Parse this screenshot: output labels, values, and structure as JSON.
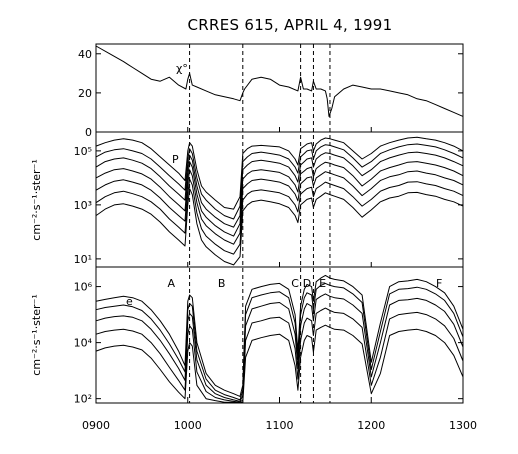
{
  "chart_data": [
    {
      "type": "line",
      "title": "CRRES 615, APRIL 4, 1991",
      "panel_label": "χ°",
      "ylabel": "",
      "ylim": [
        0,
        45
      ],
      "ytick_values": [
        0,
        20,
        40
      ],
      "ytick_labels": [
        "0",
        "20",
        "40"
      ],
      "x": [
        900,
        915,
        930,
        940,
        950,
        960,
        970,
        980,
        990,
        998,
        1000,
        1002,
        1005,
        1010,
        1020,
        1030,
        1040,
        1050,
        1057,
        1060,
        1062,
        1070,
        1080,
        1090,
        1100,
        1110,
        1120,
        1123,
        1126,
        1130,
        1135,
        1137,
        1140,
        1145,
        1150,
        1152,
        1154,
        1157,
        1160,
        1170,
        1180,
        1190,
        1200,
        1210,
        1220,
        1230,
        1240,
        1250,
        1260,
        1270,
        1280,
        1290,
        1300
      ],
      "series": [
        {
          "values": [
            44,
            40,
            36,
            33,
            30,
            27,
            26,
            28,
            24,
            22,
            27,
            30,
            24,
            23,
            21,
            19,
            18,
            17,
            16,
            20,
            22,
            27,
            28,
            27,
            24,
            23,
            21,
            28,
            22,
            22,
            21,
            26,
            22,
            22,
            21,
            17,
            8,
            12,
            18,
            22,
            24,
            23,
            22,
            22,
            21,
            20,
            19,
            17,
            16,
            14,
            12,
            10,
            8
          ]
        }
      ]
    },
    {
      "type": "line",
      "panel_label": "P",
      "ylabel": "cm⁻²·s⁻¹·ster⁻¹",
      "yscale": "log",
      "ylim": [
        5,
        500000
      ],
      "ytick_values": [
        10,
        1000,
        100000
      ],
      "ytick_labels": [
        "10¹",
        "10³",
        "10⁵"
      ],
      "x": [
        900,
        910,
        920,
        930,
        940,
        950,
        960,
        970,
        980,
        990,
        997,
        1000,
        1002,
        1005,
        1010,
        1015,
        1020,
        1030,
        1040,
        1050,
        1057,
        1060,
        1065,
        1070,
        1080,
        1090,
        1100,
        1110,
        1117,
        1120,
        1123,
        1127,
        1130,
        1135,
        1137,
        1140,
        1145,
        1150,
        1155,
        1160,
        1170,
        1180,
        1190,
        1200,
        1210,
        1220,
        1230,
        1240,
        1250,
        1260,
        1270,
        1280,
        1290,
        1300
      ],
      "series": [
        {
          "values": [
            150000,
            200000,
            250000,
            280000,
            250000,
            200000,
            120000,
            60000,
            30000,
            15000,
            8000,
            100000,
            200000,
            150000,
            20000,
            5000,
            3000,
            1500,
            800,
            700,
            2000,
            80000,
            120000,
            150000,
            160000,
            150000,
            140000,
            100000,
            50000,
            30000,
            120000,
            150000,
            180000,
            200000,
            100000,
            180000,
            250000,
            300000,
            280000,
            250000,
            200000,
            100000,
            50000,
            80000,
            150000,
            200000,
            250000,
            300000,
            320000,
            280000,
            250000,
            200000,
            150000,
            100000
          ]
        },
        {
          "values": [
            60000,
            90000,
            110000,
            120000,
            100000,
            80000,
            50000,
            25000,
            12000,
            6000,
            3500,
            50000,
            120000,
            80000,
            10000,
            2500,
            1500,
            700,
            400,
            300,
            900,
            40000,
            60000,
            80000,
            90000,
            80000,
            70000,
            50000,
            25000,
            15000,
            60000,
            80000,
            100000,
            110000,
            50000,
            100000,
            140000,
            170000,
            160000,
            140000,
            110000,
            55000,
            25000,
            40000,
            80000,
            110000,
            140000,
            170000,
            180000,
            160000,
            140000,
            110000,
            80000,
            55000
          ]
        },
        {
          "values": [
            25000,
            40000,
            50000,
            55000,
            45000,
            35000,
            22000,
            11000,
            5000,
            2500,
            1500,
            25000,
            70000,
            45000,
            5000,
            1200,
            700,
            350,
            200,
            150,
            400,
            20000,
            30000,
            40000,
            45000,
            40000,
            35000,
            25000,
            12000,
            7000,
            30000,
            40000,
            50000,
            55000,
            25000,
            50000,
            70000,
            85000,
            80000,
            70000,
            55000,
            28000,
            12000,
            20000,
            40000,
            55000,
            70000,
            85000,
            90000,
            80000,
            70000,
            55000,
            40000,
            28000
          ]
        },
        {
          "values": [
            10000,
            15000,
            20000,
            22000,
            18000,
            14000,
            9000,
            4500,
            2000,
            1000,
            600,
            12000,
            40000,
            25000,
            2500,
            600,
            350,
            170,
            100,
            70,
            200,
            9000,
            14000,
            18000,
            20000,
            18000,
            16000,
            11000,
            5500,
            3000,
            14000,
            18000,
            22000,
            25000,
            11000,
            22000,
            30000,
            38000,
            35000,
            30000,
            24000,
            12000,
            5000,
            9000,
            18000,
            24000,
            30000,
            38000,
            40000,
            35000,
            30000,
            24000,
            18000,
            12000
          ]
        },
        {
          "values": [
            3500,
            5500,
            7500,
            8500,
            7000,
            5500,
            3500,
            1800,
            800,
            400,
            250,
            6000,
            20000,
            12000,
            1200,
            300,
            170,
            85,
            50,
            35,
            90,
            4000,
            6000,
            8000,
            9000,
            8000,
            7000,
            5000,
            2500,
            1400,
            6000,
            8000,
            10000,
            11000,
            5000,
            10000,
            13000,
            17000,
            15000,
            13000,
            10000,
            5000,
            2200,
            4000,
            8000,
            11000,
            13000,
            17000,
            18000,
            15000,
            13000,
            10000,
            8000,
            5500
          ]
        },
        {
          "values": [
            1200,
            2000,
            2800,
            3200,
            2600,
            2000,
            1300,
            700,
            300,
            150,
            90,
            2500,
            9000,
            5500,
            500,
            130,
            70,
            35,
            20,
            15,
            35,
            1500,
            2500,
            3200,
            3600,
            3200,
            2800,
            2000,
            1000,
            550,
            2500,
            3300,
            4000,
            4500,
            2000,
            4000,
            5200,
            7000,
            6000,
            5200,
            4000,
            2000,
            900,
            1600,
            3200,
            4400,
            5200,
            7000,
            7200,
            6000,
            5200,
            4000,
            3200,
            2200
          ]
        },
        {
          "values": [
            400,
            700,
            1000,
            1100,
            900,
            700,
            450,
            230,
            100,
            50,
            30,
            1000,
            4000,
            2400,
            200,
            50,
            28,
            14,
            8,
            6,
            12,
            600,
            1000,
            1300,
            1500,
            1300,
            1100,
            800,
            400,
            220,
            1000,
            1300,
            1600,
            1800,
            800,
            1600,
            2100,
            2800,
            2400,
            2100,
            1600,
            800,
            350,
            650,
            1300,
            1800,
            2100,
            2800,
            2900,
            2400,
            2100,
            1600,
            1300,
            900
          ]
        }
      ]
    },
    {
      "type": "line",
      "panel_label": "e",
      "ylabel": "cm⁻²·s⁻¹·ster⁻¹",
      "yscale": "log",
      "ylim": [
        70,
        5000000
      ],
      "ytick_values": [
        100,
        10000,
        1000000
      ],
      "ytick_labels": [
        "10²",
        "10⁴",
        "10⁶"
      ],
      "xtick_values": [
        900,
        1000,
        1100,
        1200,
        1300
      ],
      "xtick_labels": [
        "0900",
        "1000",
        "1100",
        "1200",
        "1300"
      ],
      "x": [
        900,
        910,
        920,
        930,
        940,
        950,
        960,
        970,
        980,
        990,
        997,
        1000,
        1002,
        1005,
        1010,
        1020,
        1030,
        1040,
        1050,
        1057,
        1060,
        1063,
        1070,
        1080,
        1090,
        1100,
        1110,
        1117,
        1120,
        1123,
        1127,
        1130,
        1135,
        1137,
        1140,
        1145,
        1150,
        1155,
        1160,
        1170,
        1180,
        1190,
        1200,
        1210,
        1220,
        1230,
        1240,
        1250,
        1260,
        1270,
        1280,
        1290,
        1300
      ],
      "series": [
        {
          "values": [
            300000,
            350000,
            400000,
            450000,
            400000,
            300000,
            150000,
            60000,
            20000,
            5000,
            1500,
            300000,
            500000,
            400000,
            10000,
            800,
            300,
            200,
            150,
            120,
            300,
            200000,
            800000,
            1000000,
            1200000,
            1300000,
            800000,
            100000,
            5000,
            200000,
            800000,
            1200000,
            1000000,
            300000,
            1500000,
            2000000,
            2500000,
            2000000,
            1800000,
            1600000,
            1000000,
            500000,
            2000,
            50000,
            1000000,
            1500000,
            1600000,
            1800000,
            1500000,
            1000000,
            600000,
            200000,
            30000
          ]
        },
        {
          "values": [
            150000,
            180000,
            200000,
            220000,
            190000,
            140000,
            70000,
            28000,
            9000,
            2500,
            900,
            150000,
            250000,
            200000,
            5000,
            500,
            200,
            140,
            110,
            90,
            200,
            100000,
            400000,
            500000,
            600000,
            650000,
            400000,
            50000,
            2500,
            100000,
            400000,
            600000,
            500000,
            150000,
            800000,
            1100000,
            1300000,
            1100000,
            1000000,
            900000,
            550000,
            270000,
            1100,
            25000,
            550000,
            800000,
            850000,
            950000,
            800000,
            550000,
            320000,
            110000,
            16000
          ]
        },
        {
          "values": [
            60000,
            75000,
            85000,
            90000,
            80000,
            60000,
            30000,
            12000,
            4000,
            1200,
            450,
            60000,
            110000,
            85000,
            2400,
            300,
            150,
            110,
            90,
            80,
            130,
            40000,
            160000,
            200000,
            250000,
            270000,
            160000,
            20000,
            1200,
            40000,
            160000,
            250000,
            200000,
            60000,
            350000,
            450000,
            550000,
            450000,
            400000,
            360000,
            220000,
            110000,
            600,
            10000,
            220000,
            320000,
            340000,
            380000,
            320000,
            220000,
            130000,
            45000,
            7000
          ]
        },
        {
          "values": [
            20000,
            25000,
            28000,
            30000,
            26000,
            20000,
            10000,
            4000,
            1300,
            450,
            200,
            20000,
            40000,
            30000,
            900,
            180,
            110,
            90,
            80,
            75,
            90,
            12000,
            50000,
            60000,
            75000,
            80000,
            50000,
            6000,
            500,
            12000,
            50000,
            75000,
            60000,
            18000,
            110000,
            140000,
            170000,
            140000,
            120000,
            110000,
            70000,
            35000,
            300,
            3000,
            70000,
            100000,
            110000,
            120000,
            100000,
            70000,
            40000,
            14000,
            2200
          ]
        },
        {
          "values": [
            5000,
            6500,
            7500,
            8000,
            7000,
            5500,
            2800,
            1100,
            400,
            170,
            100,
            5000,
            10000,
            7500,
            300,
            100,
            85,
            75,
            75,
            72,
            75,
            3000,
            12000,
            15000,
            18000,
            20000,
            12000,
            1500,
            200,
            3000,
            12000,
            18000,
            15000,
            4500,
            28000,
            35000,
            42000,
            35000,
            30000,
            28000,
            18000,
            9000,
            150,
            800,
            18000,
            25000,
            28000,
            30000,
            25000,
            18000,
            10000,
            3500,
            600
          ]
        }
      ]
    }
  ],
  "event_markers": [
    {
      "x": 1002,
      "label": "A"
    },
    {
      "x": 1060,
      "label": "B"
    },
    {
      "x": 1123,
      "label": "C"
    },
    {
      "x": 1137,
      "label": "D"
    },
    {
      "x": 1155,
      "label": "E"
    }
  ],
  "interval_labels": [
    {
      "x": 982,
      "label": "A"
    },
    {
      "x": 1037,
      "label": "B"
    },
    {
      "x": 1117,
      "label": "C"
    },
    {
      "x": 1130,
      "label": "D"
    },
    {
      "x": 1147,
      "label": "E"
    },
    {
      "x": 1274,
      "label": "F"
    }
  ]
}
